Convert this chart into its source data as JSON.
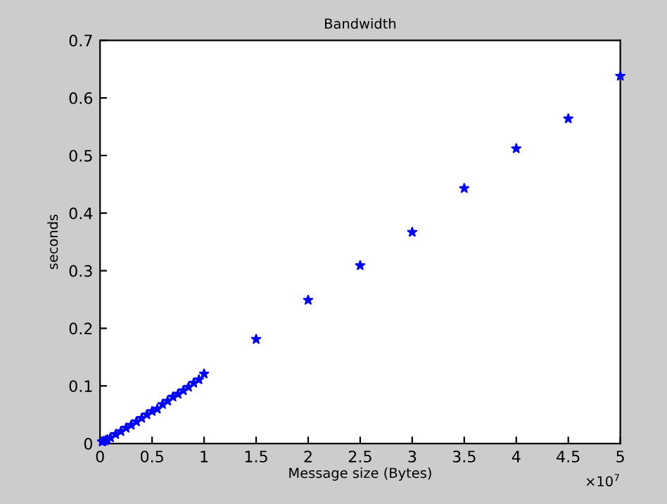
{
  "chart_data": {
    "type": "scatter",
    "title": "Bandwidth",
    "xlabel": "Message size (Bytes)",
    "ylabel": "seconds",
    "annotations": [
      "×10$^{7}$"
    ],
    "x": [
      0.02,
      0.03,
      0.05,
      0.07,
      0.1,
      0.15,
      0.2,
      0.25,
      0.3,
      0.35,
      0.4,
      0.45,
      0.5,
      0.55,
      0.6,
      0.65,
      0.7,
      0.75,
      0.8,
      0.85,
      0.9,
      0.95,
      1.0,
      1.5,
      2,
      2.5,
      3,
      3.5,
      4,
      4.5,
      5
    ],
    "series": [
      {
        "color": "#0000ff",
        "values": [
          0.003,
          0.004,
          0.005,
          0.007,
          0.01,
          0.016,
          0.021,
          0.027,
          0.032,
          0.038,
          0.044,
          0.05,
          0.056,
          0.06,
          0.068,
          0.074,
          0.081,
          0.086,
          0.092,
          0.098,
          0.105,
          0.111,
          0.121,
          0.181,
          0.249,
          0.309,
          0.367,
          0.443,
          0.512,
          0.564,
          0.638
        ]
      }
    ],
    "xlim": [
      0,
      5
    ],
    "ylim": [
      0,
      0.7
    ],
    "xticks": [
      0,
      0.5,
      1,
      1.5,
      2,
      2.5,
      3,
      3.5,
      4,
      4.5,
      5
    ],
    "yticks": [
      0,
      0.1,
      0.2,
      0.3,
      0.4,
      0.5,
      0.6,
      0.7
    ],
    "grid": false,
    "marker": "star"
  }
}
